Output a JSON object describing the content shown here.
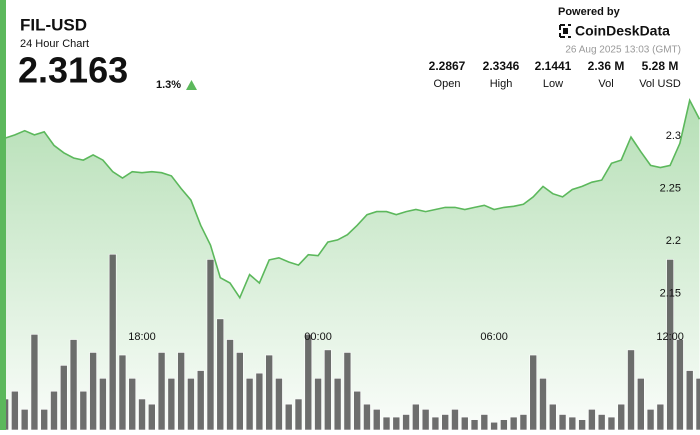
{
  "header": {
    "symbol": "FIL-USD",
    "subtitle": "24 Hour Chart",
    "price": "2.3163",
    "change": "1.3%",
    "powered_by": "Powered by",
    "brand": "CoinDeskData",
    "timestamp": "26 Aug 2025 13:03 (GMT)"
  },
  "stats": [
    {
      "value": "2.2867",
      "label": "Open"
    },
    {
      "value": "2.3346",
      "label": "High"
    },
    {
      "value": "2.1441",
      "label": "Low"
    },
    {
      "value": "2.36 M",
      "label": "Vol"
    },
    {
      "value": "5.28 M",
      "label": "Vol USD"
    }
  ],
  "chart_data": {
    "type": "line",
    "categories": [
      null,
      null,
      null,
      null,
      null,
      null,
      null,
      null,
      null,
      null,
      null,
      null,
      null,
      null,
      "18:00",
      null,
      null,
      null,
      null,
      null,
      null,
      null,
      null,
      null,
      null,
      null,
      null,
      null,
      null,
      null,
      null,
      null,
      "00:00",
      null,
      null,
      null,
      null,
      null,
      null,
      null,
      null,
      null,
      null,
      null,
      null,
      null,
      null,
      null,
      null,
      null,
      "06:00",
      null,
      null,
      null,
      null,
      null,
      null,
      null,
      null,
      null,
      null,
      null,
      null,
      null,
      null,
      null,
      null,
      null,
      "12:00",
      null,
      null,
      null
    ],
    "series": [
      {
        "color": "#5cb85c",
        "values": [
          2.298,
          2.301,
          2.305,
          2.301,
          2.304,
          2.291,
          2.284,
          2.279,
          2.277,
          2.282,
          2.277,
          2.266,
          2.26,
          2.266,
          2.265,
          2.266,
          2.265,
          2.262,
          2.25,
          2.239,
          2.215,
          2.196,
          2.165,
          2.16,
          2.146,
          2.168,
          2.16,
          2.182,
          2.184,
          2.18,
          2.177,
          2.187,
          2.186,
          2.199,
          2.201,
          2.206,
          2.215,
          2.225,
          2.228,
          2.228,
          2.225,
          2.228,
          2.23,
          2.228,
          2.23,
          2.232,
          2.232,
          2.23,
          2.232,
          2.234,
          2.23,
          2.232,
          2.233,
          2.235,
          2.242,
          2.252,
          2.245,
          2.242,
          2.249,
          2.252,
          2.256,
          2.258,
          2.274,
          2.277,
          2.299,
          2.285,
          2.272,
          2.27,
          2.272,
          2.293,
          2.334,
          2.316
        ]
      },
      {
        "color": "#555555",
        "axis": "y2",
        "values": [
          12,
          15,
          8,
          37,
          8,
          15,
          25,
          35,
          15,
          30,
          20,
          68,
          29,
          20,
          12,
          10,
          30,
          20,
          30,
          20,
          23,
          66,
          43,
          35,
          30,
          20,
          22,
          29,
          20,
          10,
          12,
          37,
          20,
          31,
          20,
          30,
          15,
          10,
          8,
          5,
          5,
          6,
          10,
          8,
          5,
          6,
          8,
          5,
          4,
          6,
          3,
          4,
          5,
          6,
          29,
          20,
          10,
          6,
          5,
          4,
          8,
          6,
          5,
          10,
          31,
          20,
          8,
          10,
          66,
          35,
          23,
          20
        ]
      }
    ],
    "ylim": [
      2.02,
      2.34
    ],
    "yticks": [
      2.15,
      2.2,
      2.25,
      2.3
    ],
    "y2lim": [
      0,
      130
    ],
    "grid": false
  }
}
